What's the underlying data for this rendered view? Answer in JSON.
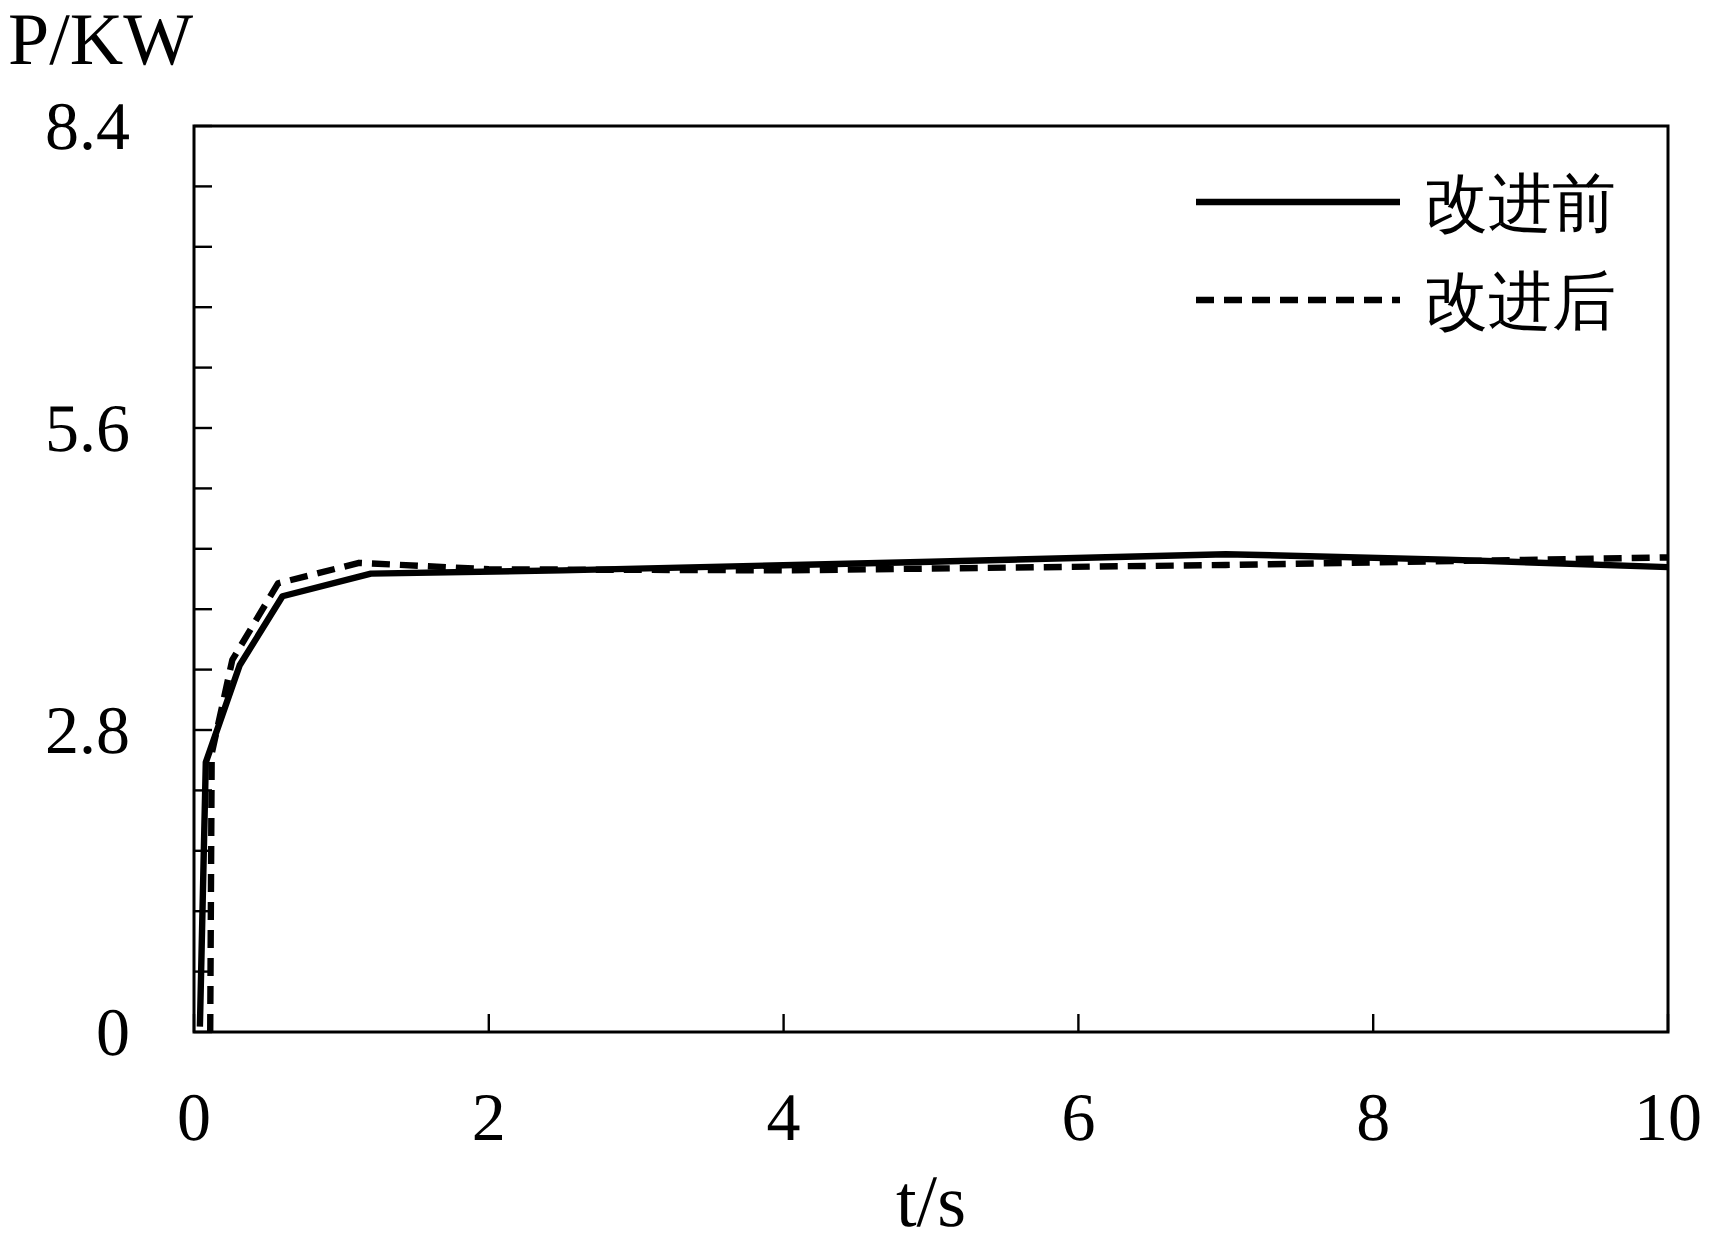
{
  "chart_data": {
    "type": "line",
    "xlabel": "t/s",
    "ylabel": "P/KW",
    "xlim": [
      0,
      10
    ],
    "xticks": [
      0,
      2,
      4,
      6,
      8,
      10
    ],
    "ylim": [
      0,
      8.4
    ],
    "yticks": [
      0,
      {
        "value": 0.56,
        "label": null
      },
      {
        "value": 1.12,
        "label": null
      },
      {
        "value": 1.68,
        "label": null
      },
      {
        "value": 2.24,
        "label": null
      },
      2.8,
      {
        "value": 3.36,
        "label": null
      },
      {
        "value": 3.92,
        "label": null
      },
      {
        "value": 4.48,
        "label": null
      },
      {
        "value": 5.04,
        "label": null
      },
      5.6,
      {
        "value": 6.16,
        "label": null
      },
      {
        "value": 6.72,
        "label": null
      },
      {
        "value": 7.28,
        "label": null
      },
      {
        "value": 7.84,
        "label": null
      },
      8.4
    ],
    "grid": false,
    "legend": "top right",
    "series": [
      {
        "name": "改进前",
        "color": "#000000",
        "line_style": "solid",
        "x": [
          0.04,
          0.08,
          0.31,
          0.6,
          1.2,
          2.5,
          5,
          7,
          8.5,
          10
        ],
        "values": [
          0.05,
          2.5,
          3.4,
          4.04,
          4.25,
          4.28,
          4.36,
          4.43,
          4.38,
          4.31
        ]
      },
      {
        "name": "改进后",
        "color": "#000000",
        "line_style": "dashed",
        "x": [
          0.11,
          0.12,
          0.26,
          0.57,
          1.12,
          2,
          4,
          7,
          10
        ],
        "values": [
          0,
          2.58,
          3.45,
          4.16,
          4.35,
          4.29,
          4.28,
          4.33,
          4.4
        ]
      }
    ]
  }
}
